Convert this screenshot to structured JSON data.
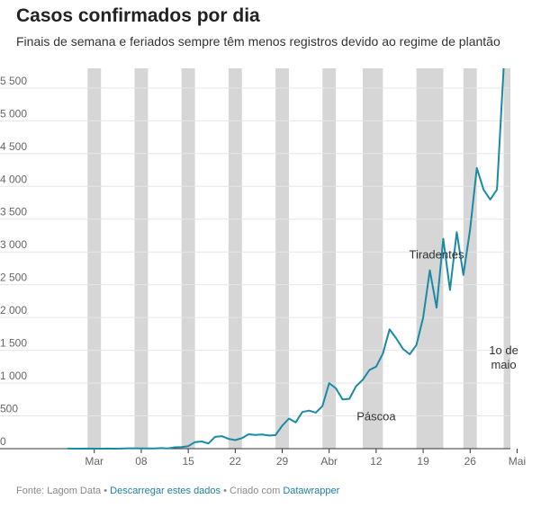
{
  "header": {
    "title": "Casos confirmados por dia",
    "subtitle": "Finais de semana e feriados sempre têm menos registros devido ao regime de plantão"
  },
  "footer": {
    "source": "Fonte: Lagom Data",
    "sep1": " • ",
    "download": "Descarregar estes dados",
    "sep2": " • Criado com ",
    "tool": "Datawrapper"
  },
  "colors": {
    "line": "#1a8aa5",
    "shade": "#d6d6d6",
    "grid": "#e6e6e6",
    "axis": "#333333"
  },
  "chart_data": {
    "type": "line",
    "title": "Casos confirmados por dia",
    "subtitle": "Finais de semana e feriados sempre têm menos registros devido ao regime de plantão",
    "x_start": "2020-02-26",
    "xlim": [
      "2020-02-24",
      "2020-05-02"
    ],
    "ylim": [
      0,
      5800
    ],
    "yticks": [
      {
        "value": 0,
        "label": "0"
      },
      {
        "value": 500,
        "label": "500"
      },
      {
        "value": 1000,
        "label": "1 000"
      },
      {
        "value": 1500,
        "label": "1 500"
      },
      {
        "value": 2000,
        "label": "2 000"
      },
      {
        "value": 2500,
        "label": "2 500"
      },
      {
        "value": 3000,
        "label": "3 000"
      },
      {
        "value": 3500,
        "label": "3 500"
      },
      {
        "value": 4000,
        "label": "4 000"
      },
      {
        "value": 4500,
        "label": "4 500"
      },
      {
        "value": 5000,
        "label": "5 000"
      },
      {
        "value": 5500,
        "label": "5 500"
      }
    ],
    "xticks": [
      {
        "date": "2020-03-01",
        "label": "Mar"
      },
      {
        "date": "2020-03-08",
        "label": "08"
      },
      {
        "date": "2020-03-15",
        "label": "15"
      },
      {
        "date": "2020-03-22",
        "label": "22"
      },
      {
        "date": "2020-03-29",
        "label": "29"
      },
      {
        "date": "2020-04-05",
        "label": "Abr"
      },
      {
        "date": "2020-04-12",
        "label": "12"
      },
      {
        "date": "2020-04-19",
        "label": "19"
      },
      {
        "date": "2020-04-26",
        "label": "26"
      },
      {
        "date": "2020-05-03",
        "label": "Mai"
      }
    ],
    "shaded_periods": [
      {
        "start": "2020-02-29",
        "end": "2020-03-02"
      },
      {
        "start": "2020-03-07",
        "end": "2020-03-09"
      },
      {
        "start": "2020-03-14",
        "end": "2020-03-16"
      },
      {
        "start": "2020-03-21",
        "end": "2020-03-23"
      },
      {
        "start": "2020-03-28",
        "end": "2020-03-30"
      },
      {
        "start": "2020-04-04",
        "end": "2020-04-06"
      },
      {
        "start": "2020-04-10",
        "end": "2020-04-13"
      },
      {
        "start": "2020-04-18",
        "end": "2020-04-20"
      },
      {
        "start": "2020-04-20",
        "end": "2020-04-22"
      },
      {
        "start": "2020-04-25",
        "end": "2020-04-27"
      },
      {
        "start": "2020-05-01",
        "end": "2020-05-04"
      }
    ],
    "annotations": [
      {
        "date": "2020-04-12",
        "y": 430,
        "lines": [
          "Páscoa"
        ]
      },
      {
        "date": "2020-04-21",
        "y": 2900,
        "lines": [
          "Tiradentes"
        ]
      },
      {
        "date": "2020-05-01",
        "y": 1440,
        "lines": [
          "1o de",
          "maio"
        ]
      }
    ],
    "series": [
      {
        "values": [
          1,
          0,
          0,
          1,
          0,
          0,
          1,
          0,
          1,
          5,
          5,
          3,
          4,
          3,
          8,
          4,
          20,
          25,
          38,
          100,
          110,
          80,
          180,
          190,
          150,
          130,
          160,
          220,
          210,
          215,
          200,
          205,
          350,
          460,
          400,
          560,
          580,
          550,
          650,
          1000,
          920,
          750,
          760,
          950,
          1050,
          1200,
          1250,
          1450,
          1820,
          1680,
          1520,
          1440,
          1580,
          2000,
          2720,
          2150,
          3200,
          2420,
          3300,
          2650,
          3350,
          4280,
          3950,
          3800,
          3950,
          5800
        ]
      }
    ]
  }
}
